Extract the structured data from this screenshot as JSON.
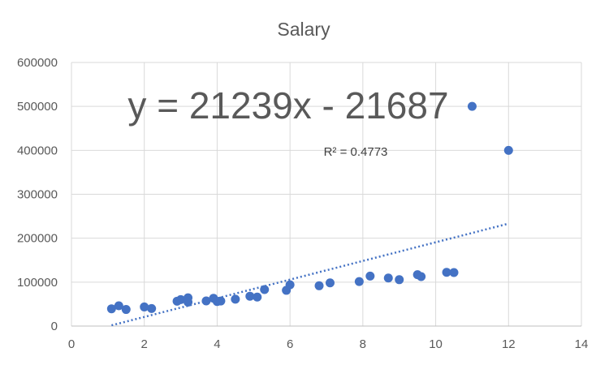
{
  "chart_data": {
    "type": "scatter",
    "title": "Salary",
    "xlabel": "",
    "ylabel": "",
    "xlim": [
      0,
      14
    ],
    "ylim": [
      0,
      600000
    ],
    "x_ticks": [
      "0",
      "2",
      "4",
      "6",
      "8",
      "10",
      "12",
      "14"
    ],
    "y_ticks": [
      "0",
      "100000",
      "200000",
      "300000",
      "400000",
      "500000",
      "600000"
    ],
    "grid": true,
    "marker_color": "#4472C4",
    "series": [
      {
        "points": [
          [
            1.1,
            39343
          ],
          [
            1.3,
            46205
          ],
          [
            1.5,
            37731
          ],
          [
            2.0,
            43525
          ],
          [
            2.2,
            39891
          ],
          [
            2.9,
            56642
          ],
          [
            3.0,
            60150
          ],
          [
            3.2,
            54445
          ],
          [
            3.2,
            64445
          ],
          [
            3.7,
            57189
          ],
          [
            3.9,
            63218
          ],
          [
            4.0,
            55794
          ],
          [
            4.1,
            57081
          ],
          [
            4.5,
            61111
          ],
          [
            4.9,
            67938
          ],
          [
            5.1,
            66029
          ],
          [
            5.3,
            83088
          ],
          [
            5.9,
            81363
          ],
          [
            6.0,
            93940
          ],
          [
            6.8,
            91738
          ],
          [
            7.1,
            98273
          ],
          [
            7.9,
            101302
          ],
          [
            8.2,
            113812
          ],
          [
            8.7,
            109431
          ],
          [
            9.0,
            105582
          ],
          [
            9.5,
            116969
          ],
          [
            9.6,
            112635
          ],
          [
            10.3,
            122391
          ],
          [
            10.5,
            121872
          ],
          [
            11.0,
            500000
          ],
          [
            12.0,
            400000
          ]
        ]
      }
    ],
    "trendline": {
      "type": "linear",
      "slope": 21239,
      "intercept": -21687,
      "x_range": [
        1.1,
        12
      ],
      "equation_label": "y = 21239x - 21687",
      "r2_label": "R² = 0.4773",
      "color": "#4472C4"
    }
  }
}
